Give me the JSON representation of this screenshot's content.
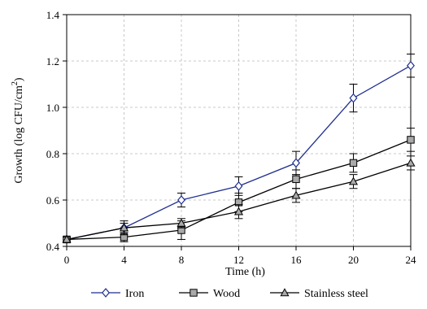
{
  "chart_data": {
    "type": "line",
    "title": "",
    "xlabel": "Time (h)",
    "ylabel_main": "Growth (log CFU/cm",
    "ylabel_sup": "2",
    "ylabel_close": ")",
    "x": [
      0,
      4,
      8,
      12,
      16,
      20,
      24
    ],
    "x_ticks": [
      "0",
      "4",
      "8",
      "12",
      "16",
      "20",
      "24"
    ],
    "y_ticks": [
      "0.4",
      "0.6",
      "0.8",
      "1.0",
      "1.2",
      "1.4"
    ],
    "xlim": [
      0,
      24
    ],
    "ylim": [
      0.4,
      1.4
    ],
    "grid": true,
    "legend_position": "bottom",
    "series": [
      {
        "name": "Iron",
        "color": "#1f2f8f",
        "marker": "diamond",
        "values": [
          0.43,
          0.48,
          0.6,
          0.66,
          0.76,
          1.04,
          1.18
        ],
        "errors": [
          0.01,
          0.02,
          0.03,
          0.04,
          0.05,
          0.06,
          0.05
        ]
      },
      {
        "name": "Wood",
        "color": "#000000",
        "marker": "square",
        "values": [
          0.43,
          0.44,
          0.47,
          0.59,
          0.69,
          0.76,
          0.86
        ],
        "errors": [
          0.01,
          0.02,
          0.04,
          0.04,
          0.04,
          0.04,
          0.05
        ]
      },
      {
        "name": "Stainless steel",
        "color": "#000000",
        "marker": "triangle",
        "values": [
          0.43,
          0.48,
          0.5,
          0.55,
          0.62,
          0.68,
          0.76
        ],
        "errors": [
          0.01,
          0.03,
          0.02,
          0.03,
          0.03,
          0.03,
          0.03
        ]
      }
    ]
  }
}
